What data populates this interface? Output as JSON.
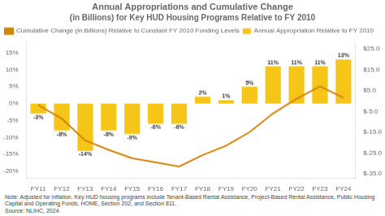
{
  "chart_data": {
    "type": "bar",
    "title": "Annual Appropriations and Cumulative Change",
    "subtitle": "(in Billions) for Key HUD Housing Programs Relative to FY 2010",
    "categories": [
      "FY11",
      "FY12",
      "FY13",
      "FY14",
      "FY15",
      "FY16",
      "FY17",
      "FY18",
      "FY19",
      "FY20",
      "FY21",
      "FY22",
      "FY23",
      "FY24"
    ],
    "series": [
      {
        "name": "Annual Appropriation Relative to FY 2010",
        "type": "bar",
        "color": "#F5C518",
        "values": [
          -3,
          -8,
          -14,
          -8,
          -9,
          -6,
          -6,
          2,
          1,
          5,
          11,
          11,
          11,
          13
        ],
        "value_labels": [
          "-3%",
          "-8%",
          "-14%",
          "-8%",
          "-9%",
          "-6%",
          "-6%",
          "2%",
          "1%",
          "5%",
          "11%",
          "11%",
          "11%",
          "13%"
        ]
      },
      {
        "name": "Cumulative Change (in Billions) Relative to Constant FY 2010 Funding Levels",
        "type": "line",
        "color": "#D4830A",
        "axis": "y2",
        "values": [
          -2.0,
          -8.5,
          -19.0,
          -23.5,
          -27.5,
          -29.5,
          -31.5,
          -26.0,
          -21.5,
          -15.0,
          -6.0,
          1.0,
          7.0,
          1.5
        ]
      }
    ],
    "ylim": [
      -22,
      18
    ],
    "yticks": [
      {
        "value": -20,
        "label": "-20%"
      },
      {
        "value": -15,
        "label": "-15%"
      },
      {
        "value": -10,
        "label": "-10%"
      },
      {
        "value": -5,
        "label": "-5%"
      },
      {
        "value": 0,
        "label": "0%"
      },
      {
        "value": 5,
        "label": "5%"
      },
      {
        "value": 10,
        "label": "10%"
      },
      {
        "value": 15,
        "label": "15%"
      }
    ],
    "y2lim": [
      -37,
      28
    ],
    "y2ticks": [
      {
        "value": -35.0,
        "label": "$-35.0"
      },
      {
        "value": -25.0,
        "label": "$-25.0"
      },
      {
        "value": -15.0,
        "label": "$-15.0"
      },
      {
        "value": -5.0,
        "label": "$-5.0"
      },
      {
        "value": 5.0,
        "label": "$5.0"
      },
      {
        "value": 15.0,
        "label": "$15.0"
      },
      {
        "value": 25.0,
        "label": "$25.0"
      }
    ],
    "grid": false,
    "legend": "upper left",
    "data_labels": true,
    "annotations": [
      "Note: Adjusted for inflation. Key HUD housing programs include Tenant-Based Rental Assistance, Project-Based Rental Assistance, Public Housing",
      "Capital and Operating Funds, HOME, Section 202, and Section 811.",
      "Source: NLIHC, 2024"
    ]
  }
}
